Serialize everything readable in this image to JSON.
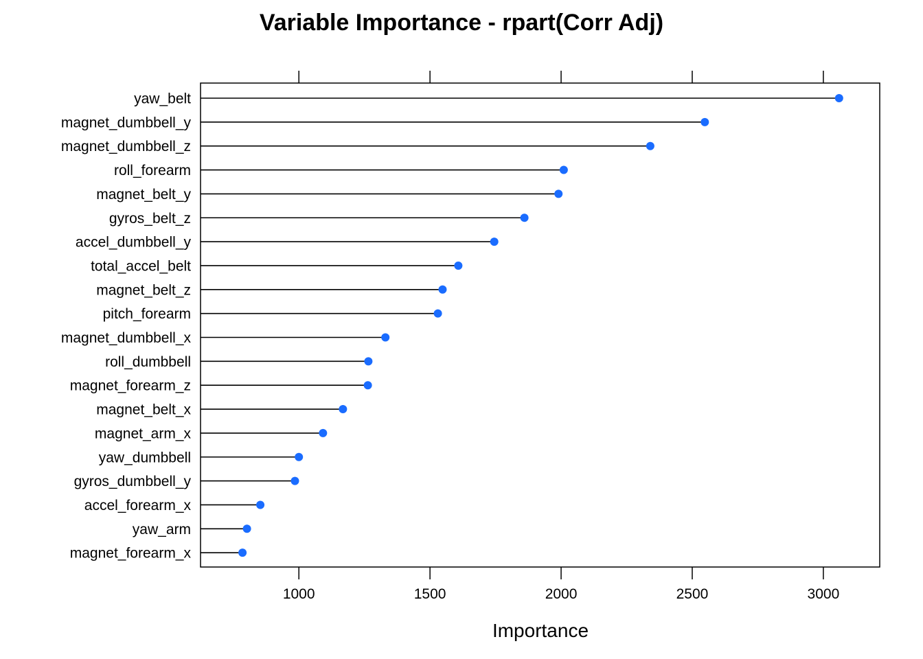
{
  "chart_data": {
    "type": "dotplot",
    "title": "Variable Importance - rpart(Corr Adj)",
    "xlabel": "Importance",
    "ylabel": "",
    "xlim": [
      625,
      3215
    ],
    "xticks": [
      1000,
      1500,
      2000,
      2500,
      3000
    ],
    "grid": false,
    "marker_color": "#1a6cff",
    "line_color": "#000000",
    "categories": [
      "yaw_belt",
      "magnet_dumbbell_y",
      "magnet_dumbbell_z",
      "roll_forearm",
      "magnet_belt_y",
      "gyros_belt_z",
      "accel_dumbbell_y",
      "total_accel_belt",
      "magnet_belt_z",
      "pitch_forearm",
      "magnet_dumbbell_x",
      "roll_dumbbell",
      "magnet_forearm_z",
      "magnet_belt_x",
      "magnet_arm_x",
      "yaw_dumbbell",
      "gyros_dumbbell_y",
      "accel_forearm_x",
      "yaw_arm",
      "magnet_forearm_x"
    ],
    "values": [
      3060,
      2548,
      2340,
      2010,
      1990,
      1860,
      1745,
      1608,
      1548,
      1530,
      1330,
      1265,
      1263,
      1168,
      1092,
      1000,
      985,
      853,
      802,
      785
    ]
  }
}
